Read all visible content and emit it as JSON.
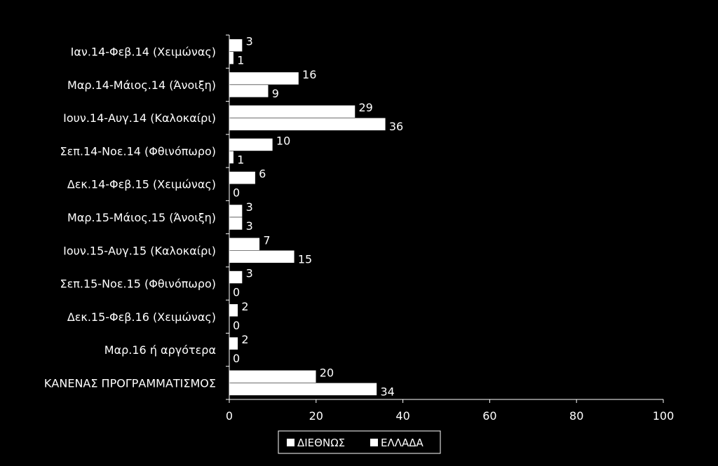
{
  "chart_data": {
    "type": "bar",
    "orientation": "horizontal",
    "categories": [
      "Ιαν.14-Φεβ.14 (Χειμώνας)",
      "Μαρ.14-Μάιος.14 (Άνοιξη)",
      "Ιουν.14-Αυγ.14 (Καλοκαίρι)",
      "Σεπ.14-Νοε.14 (Φθινόπωρο)",
      "Δεκ.14-Φεβ.15 (Χειμώνας)",
      "Μαρ.15-Μάιος.15 (Άνοιξη)",
      "Ιουν.15-Αυγ.15 (Καλοκαίρι)",
      "Σεπ.15-Νοε.15 (Φθινόπωρο)",
      "Δεκ.15-Φεβ.16 (Χειμώνας)",
      "Μαρ.16 ή αργότερα",
      "ΚΑΝΕΝΑΣ ΠΡΟΓΡΑΜΜΑΤΙΣΜΟΣ"
    ],
    "series": [
      {
        "name": "ΔΙΕΘΝΩΣ",
        "values": [
          3,
          16,
          29,
          10,
          6,
          3,
          7,
          3,
          2,
          2,
          20
        ]
      },
      {
        "name": "ΕΛΛΑΔΑ",
        "values": [
          1,
          9,
          36,
          1,
          0,
          3,
          15,
          0,
          0,
          0,
          34
        ]
      }
    ],
    "xlim": [
      0,
      100
    ],
    "xticks": [
      "0",
      "20",
      "40",
      "60",
      "80",
      "100"
    ],
    "legend_position": "bottom",
    "grid": false,
    "colors": {
      "background": "#000000",
      "bars": "#ffffff",
      "text": "#ffffff",
      "axis": "#ffffff"
    }
  }
}
